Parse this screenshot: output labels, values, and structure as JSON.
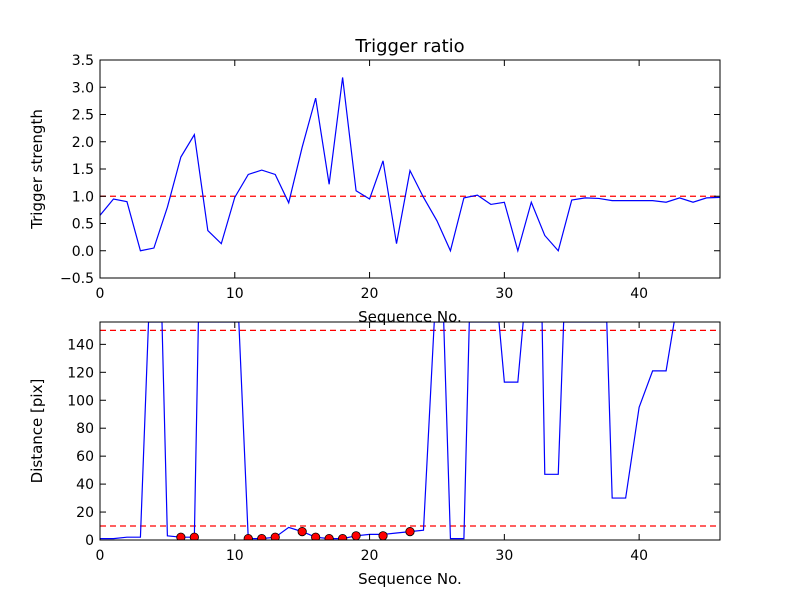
{
  "chart_data": [
    {
      "type": "line",
      "title": "Trigger ratio",
      "xlabel": "Sequence No.",
      "ylabel": "Trigger strength",
      "xlim": [
        0,
        46
      ],
      "ylim": [
        -0.5,
        3.5
      ],
      "xticks": [
        0,
        10,
        20,
        30,
        40
      ],
      "xtick_labels": [
        "0",
        "10",
        "20",
        "30",
        "40"
      ],
      "yticks": [
        -0.5,
        0.0,
        0.5,
        1.0,
        1.5,
        2.0,
        2.5,
        3.0,
        3.5
      ],
      "ytick_labels": [
        "−0.5",
        "0.0",
        "0.5",
        "1.0",
        "1.5",
        "2.0",
        "2.5",
        "3.0",
        "3.5"
      ],
      "grid": false,
      "series": [
        {
          "color": "#0000ff",
          "x": [
            0,
            1,
            2,
            3,
            4,
            5,
            6,
            7,
            8,
            9,
            10,
            11,
            12,
            13,
            14,
            15,
            16,
            17,
            18,
            19,
            20,
            21,
            22,
            23,
            24,
            25,
            26,
            27,
            28,
            29,
            30,
            31,
            32,
            33,
            34,
            35,
            36,
            37,
            38,
            39,
            40,
            41,
            42,
            43,
            44,
            45,
            46
          ],
          "y": [
            0.65,
            0.95,
            0.9,
            0.0,
            0.05,
            0.8,
            1.72,
            2.13,
            0.37,
            0.13,
            0.98,
            1.4,
            1.48,
            1.4,
            0.88,
            1.9,
            2.8,
            1.22,
            3.18,
            1.1,
            0.95,
            1.65,
            0.13,
            1.47,
            0.98,
            0.55,
            0.0,
            0.97,
            1.02,
            0.85,
            0.89,
            0.0,
            0.89,
            0.28,
            0.0,
            0.93,
            0.97,
            0.96,
            0.92,
            0.92,
            0.92,
            0.92,
            0.89,
            0.97,
            0.89,
            0.97,
            0.98
          ]
        }
      ],
      "hlines": [
        {
          "y": 1.0,
          "color": "#ff0000",
          "style": "dashed"
        }
      ]
    },
    {
      "type": "line",
      "xlabel": "Sequence No.",
      "ylabel": "Distance [pix]",
      "xlim": [
        0,
        46
      ],
      "ylim": [
        0,
        156
      ],
      "xticks": [
        0,
        10,
        20,
        30,
        40
      ],
      "xtick_labels": [
        "0",
        "10",
        "20",
        "30",
        "40"
      ],
      "yticks": [
        0,
        20,
        40,
        60,
        80,
        100,
        120,
        140
      ],
      "ytick_labels": [
        "0",
        "20",
        "40",
        "60",
        "80",
        "100",
        "120",
        "140"
      ],
      "grid": false,
      "series": [
        {
          "color": "#0000ff",
          "x": [
            0,
            1,
            2,
            3,
            3.6,
            4.6,
            5,
            6,
            7,
            7.3,
            10.3,
            11,
            12,
            13,
            14,
            15,
            16,
            17,
            18,
            19,
            20,
            21,
            22,
            23,
            24,
            24.8,
            25.5,
            26,
            27,
            27.4,
            29.6,
            30,
            31,
            31.4,
            32.8,
            33,
            34,
            34.4,
            37.6,
            38,
            39,
            40,
            41,
            42,
            42.6
          ],
          "y": [
            1,
            1,
            2,
            2,
            156,
            156,
            3,
            2,
            2,
            156,
            156,
            1,
            1,
            2,
            9,
            6,
            2,
            1,
            1,
            3,
            4,
            4,
            5,
            6,
            7,
            156,
            156,
            1,
            1,
            156,
            156,
            113,
            113,
            156,
            156,
            47,
            47,
            156,
            156,
            30,
            30,
            95,
            121,
            121,
            156
          ]
        },
        {
          "color": "#ff0000",
          "marker": "circle",
          "x": [
            6,
            7,
            11,
            12,
            13,
            15,
            16,
            17,
            18,
            19,
            21,
            23
          ],
          "y": [
            2,
            2,
            1,
            1,
            2,
            6,
            2,
            1,
            1,
            3,
            3,
            6
          ]
        }
      ],
      "hlines": [
        {
          "y": 150,
          "color": "#ff0000",
          "style": "dashed"
        },
        {
          "y": 10,
          "color": "#ff0000",
          "style": "dashed"
        }
      ]
    }
  ]
}
